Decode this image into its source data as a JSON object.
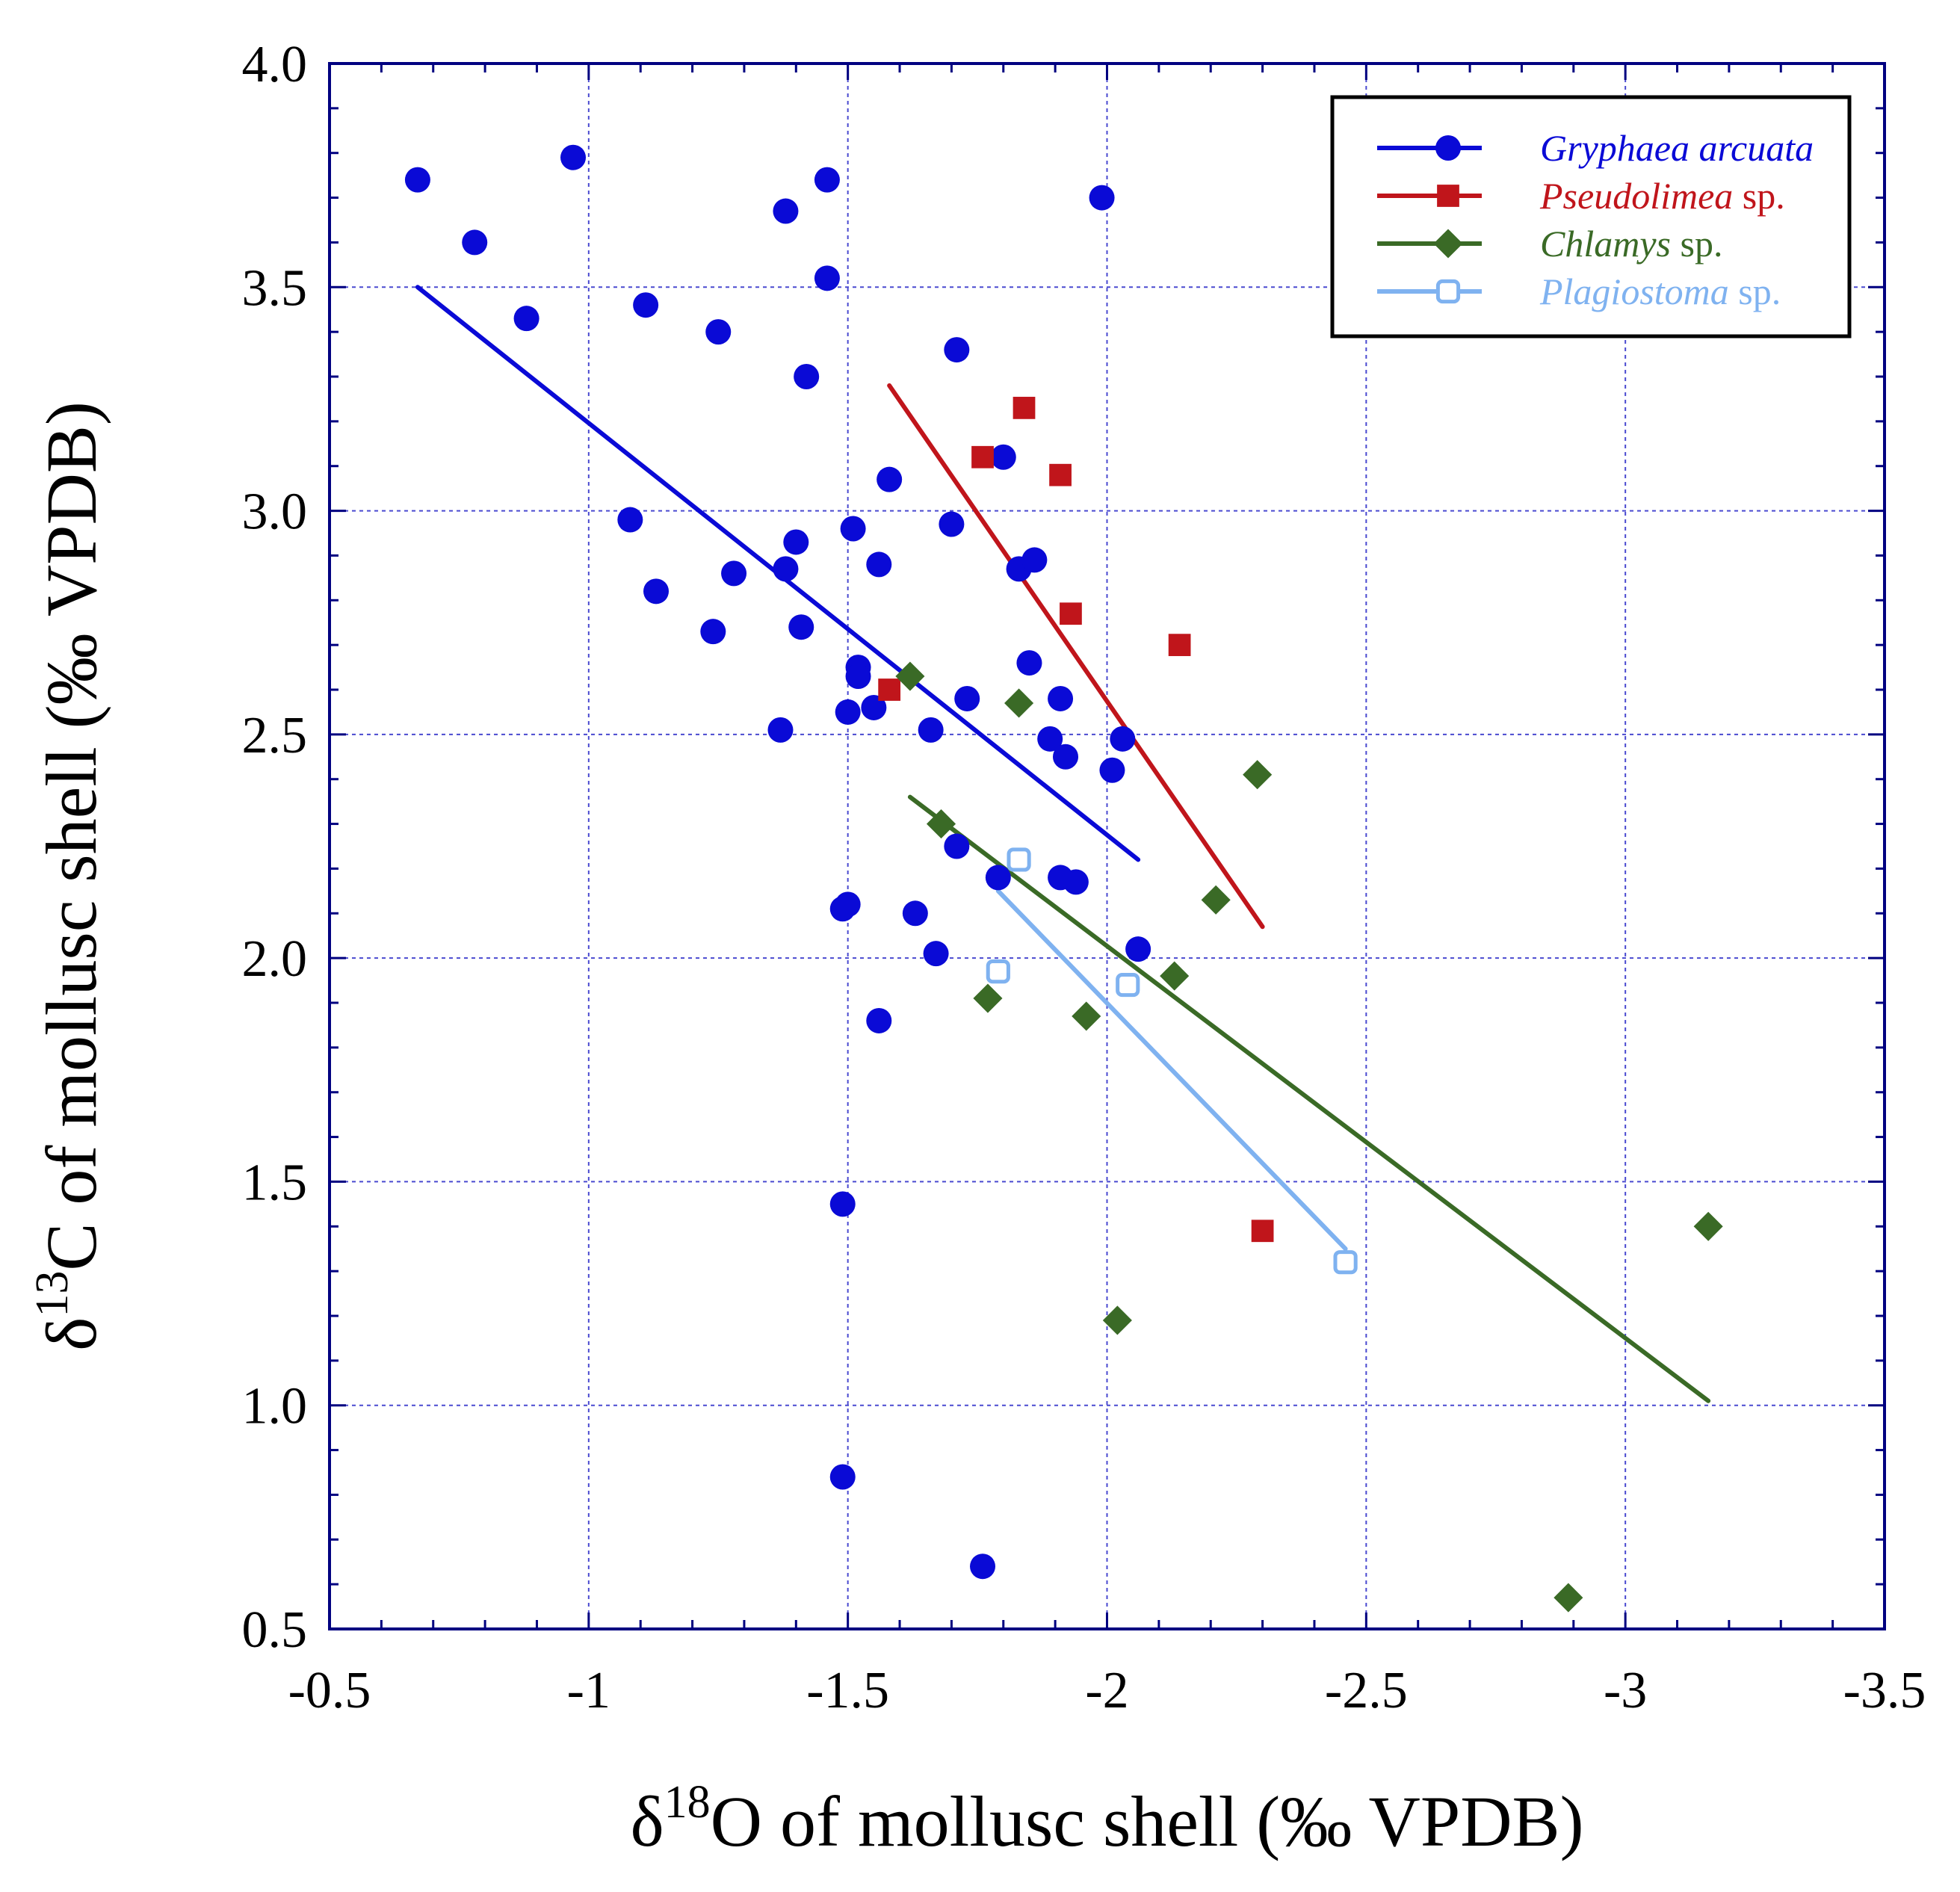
{
  "chart_data": {
    "type": "scatter",
    "xlabel": "δ18O of mollusc shell (‰ VPDB)",
    "xlabel_parts": {
      "delta": "δ",
      "sup": "18",
      "rest": "O of mollusc shell (‰ VPDB)"
    },
    "ylabel": "δ13C of mollusc shell (‰ VPDB)",
    "ylabel_parts": {
      "delta": "δ",
      "sup": "13",
      "rest": "C of mollusc shell (‰ VPDB)"
    },
    "xlim": [
      -0.5,
      -3.5
    ],
    "ylim": [
      0.5,
      4.0
    ],
    "x_ticks": [
      -0.5,
      -1,
      -1.5,
      -2,
      -2.5,
      -3,
      -3.5
    ],
    "x_tick_labels": [
      "-0.5",
      "-1",
      "-1.5",
      "-2",
      "-2.5",
      "-3",
      "-3.5"
    ],
    "y_ticks": [
      0.5,
      1.0,
      1.5,
      2.0,
      2.5,
      3.0,
      3.5,
      4.0
    ],
    "y_tick_labels": [
      "0.5",
      "1.0",
      "1.5",
      "2.0",
      "2.5",
      "3.0",
      "3.5",
      "4.0"
    ],
    "x_minor_step": 0.1,
    "y_minor_step": 0.1,
    "grid": true,
    "legend_position": "top-right",
    "series": [
      {
        "name": "Gryphaea arcuata",
        "name_italic": "Gryphaea arcuata",
        "name_suffix": "",
        "color": "#0a0ad6",
        "marker": "circle",
        "filled": true,
        "points": [
          [
            -0.67,
            3.74
          ],
          [
            -0.78,
            3.6
          ],
          [
            -0.88,
            3.43
          ],
          [
            -0.97,
            3.79
          ],
          [
            -1.08,
            2.98
          ],
          [
            -1.11,
            3.46
          ],
          [
            -1.13,
            2.82
          ],
          [
            -1.24,
            2.73
          ],
          [
            -1.25,
            3.4
          ],
          [
            -1.28,
            2.86
          ],
          [
            -1.37,
            2.51
          ],
          [
            -1.38,
            2.87
          ],
          [
            -1.38,
            3.67
          ],
          [
            -1.4,
            2.93
          ],
          [
            -1.41,
            2.74
          ],
          [
            -1.42,
            3.3
          ],
          [
            -1.46,
            3.74
          ],
          [
            -1.46,
            3.52
          ],
          [
            -1.49,
            1.45
          ],
          [
            -1.49,
            0.84
          ],
          [
            -1.49,
            2.11
          ],
          [
            -1.5,
            2.12
          ],
          [
            -1.5,
            2.55
          ],
          [
            -1.51,
            2.96
          ],
          [
            -1.52,
            2.65
          ],
          [
            -1.52,
            2.63
          ],
          [
            -1.55,
            2.56
          ],
          [
            -1.56,
            2.88
          ],
          [
            -1.56,
            1.86
          ],
          [
            -1.58,
            3.07
          ],
          [
            -1.63,
            2.1
          ],
          [
            -1.66,
            2.51
          ],
          [
            -1.67,
            2.01
          ],
          [
            -1.7,
            2.97
          ],
          [
            -1.71,
            3.36
          ],
          [
            -1.71,
            2.25
          ],
          [
            -1.73,
            2.58
          ],
          [
            -1.76,
            0.64
          ],
          [
            -1.79,
            2.18
          ],
          [
            -1.8,
            3.12
          ],
          [
            -1.83,
            2.87
          ],
          [
            -1.85,
            2.66
          ],
          [
            -1.86,
            2.89
          ],
          [
            -1.89,
            2.49
          ],
          [
            -1.91,
            2.58
          ],
          [
            -1.91,
            2.18
          ],
          [
            -1.92,
            2.45
          ],
          [
            -1.94,
            2.17
          ],
          [
            -1.99,
            3.7
          ],
          [
            -2.01,
            2.42
          ],
          [
            -2.03,
            2.49
          ],
          [
            -2.06,
            2.02
          ]
        ],
        "trendline": [
          [
            -0.67,
            3.5
          ],
          [
            -2.06,
            2.22
          ]
        ]
      },
      {
        "name": "Pseudolimea sp.",
        "name_italic": "Pseudolimea",
        "name_suffix": " sp.",
        "color": "#c0151b",
        "marker": "square",
        "filled": true,
        "points": [
          [
            -1.58,
            2.6
          ],
          [
            -1.76,
            3.12
          ],
          [
            -1.84,
            3.23
          ],
          [
            -1.91,
            3.08
          ],
          [
            -1.93,
            2.77
          ],
          [
            -2.14,
            2.7
          ],
          [
            -2.3,
            1.39
          ]
        ],
        "trendline": [
          [
            -1.58,
            3.28
          ],
          [
            -2.3,
            2.07
          ]
        ]
      },
      {
        "name": "Chlamys sp.",
        "name_italic": "Chlamys",
        "name_suffix": " sp.",
        "color": "#3a6a26",
        "marker": "diamond",
        "filled": true,
        "points": [
          [
            -1.62,
            2.63
          ],
          [
            -1.68,
            2.3
          ],
          [
            -1.77,
            1.91
          ],
          [
            -1.83,
            2.57
          ],
          [
            -1.96,
            1.87
          ],
          [
            -2.02,
            1.19
          ],
          [
            -2.13,
            1.96
          ],
          [
            -2.21,
            2.13
          ],
          [
            -2.29,
            2.41
          ],
          [
            -2.89,
            0.57
          ],
          [
            -3.16,
            1.4
          ]
        ],
        "trendline": [
          [
            -1.62,
            2.36
          ],
          [
            -3.16,
            1.01
          ]
        ]
      },
      {
        "name": "Plagiostoma sp.",
        "name_italic": "Plagiostoma",
        "name_suffix": " sp.",
        "color": "#7fb2f0",
        "marker": "square-open",
        "filled": false,
        "points": [
          [
            -1.79,
            1.97
          ],
          [
            -1.83,
            2.22
          ],
          [
            -2.04,
            1.94
          ],
          [
            -2.46,
            1.32
          ]
        ],
        "trendline": [
          [
            -1.79,
            2.15
          ],
          [
            -2.46,
            1.35
          ]
        ]
      }
    ]
  }
}
